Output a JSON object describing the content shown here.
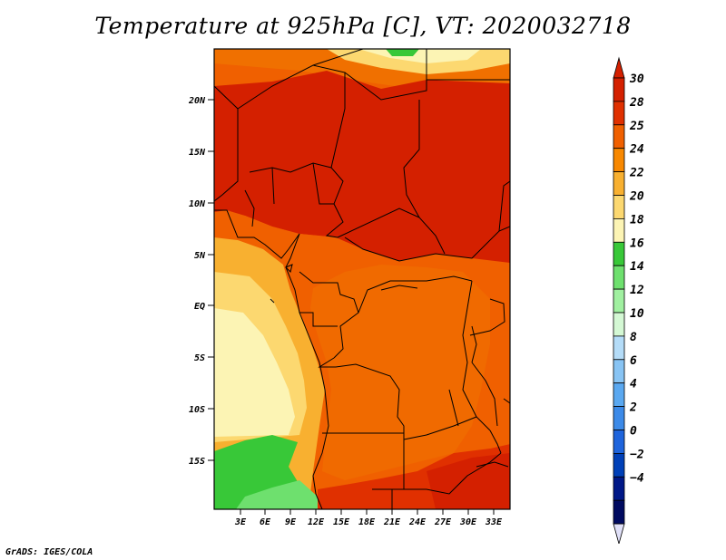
{
  "title": "Temperature at 925hPa [C], VT: 2020032718",
  "credit": "GrADS: IGES/COLA",
  "map": {
    "lat_labels": [
      "20N",
      "15N",
      "10N",
      "5N",
      "EQ",
      "5S",
      "10S",
      "15S"
    ],
    "lon_labels": [
      "3E",
      "6E",
      "9E",
      "12E",
      "15E",
      "18E",
      "21E",
      "24E",
      "27E",
      "30E",
      "33E"
    ]
  },
  "colorbar": {
    "labels": [
      "30",
      "28",
      "25",
      "24",
      "22",
      "20",
      "18",
      "16",
      "14",
      "12",
      "10",
      "8",
      "6",
      "4",
      "2",
      "0",
      "−2",
      "−4"
    ],
    "colors": [
      "#d42000",
      "#e03000",
      "#f06000",
      "#f88800",
      "#f8b030",
      "#fcd870",
      "#fcf4b4",
      "#38c838",
      "#6ee06e",
      "#a0f0a0",
      "#d4f8d4",
      "#b4dcf8",
      "#88c4f4",
      "#5aa8f0",
      "#3c8ae8",
      "#1e64dc",
      "#0040b8",
      "#001888",
      "#000a60"
    ],
    "top_color": "#d42000",
    "bottom_color": "#e0e0f8"
  }
}
